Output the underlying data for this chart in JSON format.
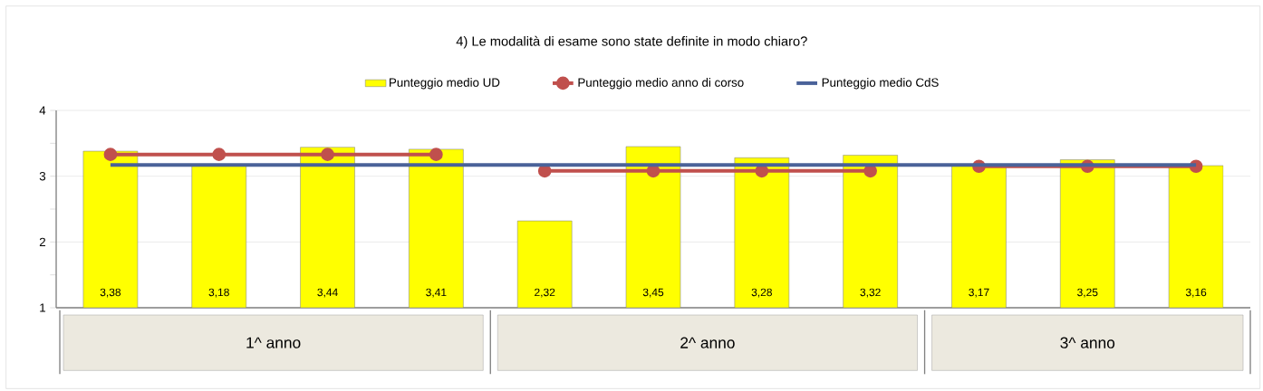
{
  "chart_data": {
    "type": "bar",
    "title": "4) Le modalità di esame sono state definite in modo chiaro?",
    "categories": [
      null,
      null,
      null,
      null,
      null,
      null,
      null,
      null,
      null,
      null,
      null
    ],
    "series": [
      {
        "name": "Punteggio medio UD",
        "color": "#ffff00",
        "values": [
          3.38,
          3.18,
          3.44,
          3.41,
          2.32,
          3.45,
          3.28,
          3.32,
          3.17,
          3.25,
          3.16
        ],
        "value_labels": [
          "3,38",
          "3,18",
          "3,44",
          "3,41",
          "2,32",
          "3,45",
          "3,28",
          "3,32",
          "3,17",
          "3,25",
          "3,16"
        ]
      },
      {
        "type": "line",
        "name": "Punteggio medio anno di corso",
        "color": "#c0504d",
        "marker": "circle",
        "values": [
          3.33,
          3.33,
          3.33,
          3.33,
          null,
          null,
          null,
          null,
          null,
          null,
          null
        ]
      },
      {
        "type": "line",
        "color": "#c0504d",
        "marker": "circle",
        "values": [
          null,
          null,
          null,
          null,
          3.08,
          3.08,
          3.08,
          3.08,
          null,
          null,
          null
        ]
      },
      {
        "type": "line",
        "color": "#c0504d",
        "marker": "circle",
        "values": [
          null,
          null,
          null,
          null,
          null,
          null,
          null,
          null,
          3.15,
          3.15,
          3.15
        ]
      },
      {
        "type": "line",
        "name": "Punteggio medio CdS",
        "color": "#4a6299",
        "values": [
          3.17,
          3.17,
          3.17,
          3.17,
          3.17,
          3.17,
          3.17,
          3.17,
          3.17,
          3.17,
          3.17
        ]
      }
    ],
    "annotations": [
      "1^ anno",
      "2^ anno",
      "3^ anno"
    ],
    "ylim": [
      1,
      4
    ],
    "yticks": [
      1,
      {
        "value": 1.5,
        "label": null
      },
      2,
      {
        "value": 2.5,
        "label": null
      },
      3,
      {
        "value": 3.5,
        "label": null
      },
      4
    ],
    "grid": "y",
    "legend": "top"
  }
}
